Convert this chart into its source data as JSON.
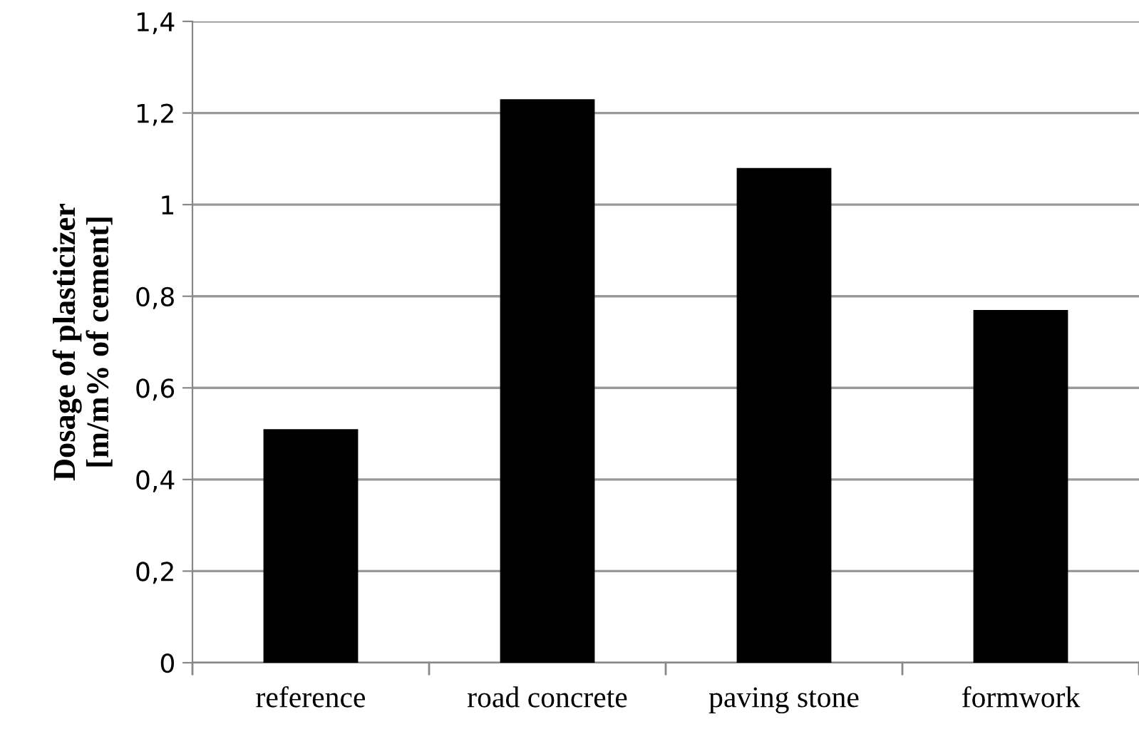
{
  "chart_data": {
    "type": "bar",
    "ylabel": "Dosage of plasticizer\n[m/m% of cement]",
    "categories": [
      "reference",
      "road concrete",
      "paving stone",
      "formwork"
    ],
    "values": [
      0.51,
      1.23,
      1.08,
      0.77
    ],
    "color": "#000000",
    "ylim": [
      0,
      1.4
    ],
    "yticks": [
      0,
      {
        "value": 0.2,
        "label": "0,2"
      },
      {
        "value": 0.4,
        "label": "0,4"
      },
      {
        "value": 0.6,
        "label": "0,6"
      },
      {
        "value": 0.8,
        "label": "0,8"
      },
      1,
      {
        "value": 1.2,
        "label": "1,2"
      },
      {
        "value": 1.4,
        "label": "1,4"
      }
    ],
    "grid": "y",
    "legend": false
  }
}
